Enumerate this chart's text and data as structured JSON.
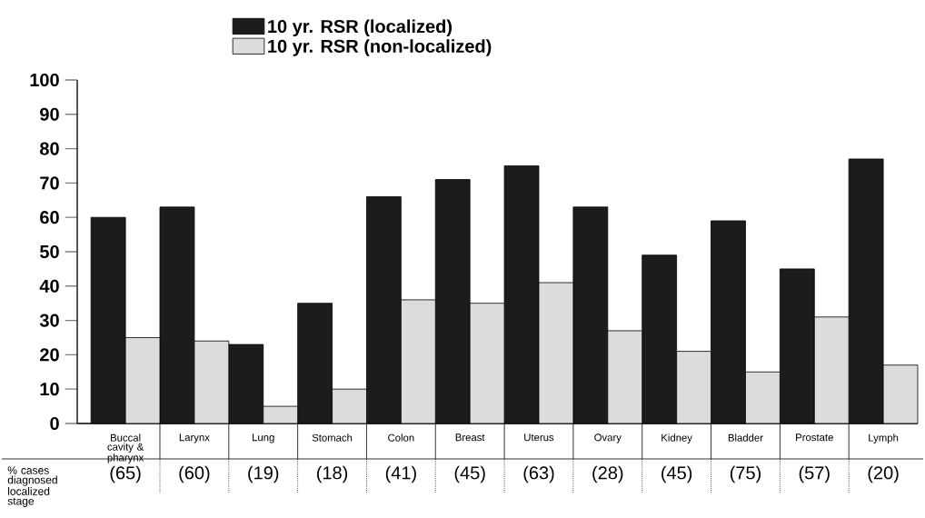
{
  "chart_data": {
    "type": "bar",
    "categories": [
      "Buccal cavity & pharynx",
      "Larynx",
      "Lung",
      "Stomach",
      "Colon",
      "Breast",
      "Uterus",
      "Ovary",
      "Kidney",
      "Bladder",
      "Prostate",
      "Lymph"
    ],
    "series": [
      {
        "name": "10 yr. RSR (localized)",
        "color": "#1c1c1c",
        "values": [
          60,
          63,
          23,
          35,
          66,
          71,
          75,
          63,
          49,
          59,
          45,
          77
        ]
      },
      {
        "name": "10 yr. RSR (non-localized)",
        "color": "#dcdcdc",
        "values": [
          25,
          24,
          5,
          10,
          36,
          35,
          41,
          27,
          21,
          15,
          31,
          17
        ]
      }
    ],
    "ylim": [
      0,
      100
    ],
    "yticks": [
      0,
      10,
      20,
      30,
      40,
      50,
      60,
      70,
      80,
      90,
      100
    ],
    "grid": false,
    "legend": "top",
    "annotations": [
      "% cases diagnosed localized stage",
      "(65)",
      "(60)",
      "(19)",
      "(18)",
      "(41)",
      "(45)",
      "(63)",
      "(28)",
      "(45)",
      "(75)",
      "(57)",
      "(20)"
    ]
  }
}
